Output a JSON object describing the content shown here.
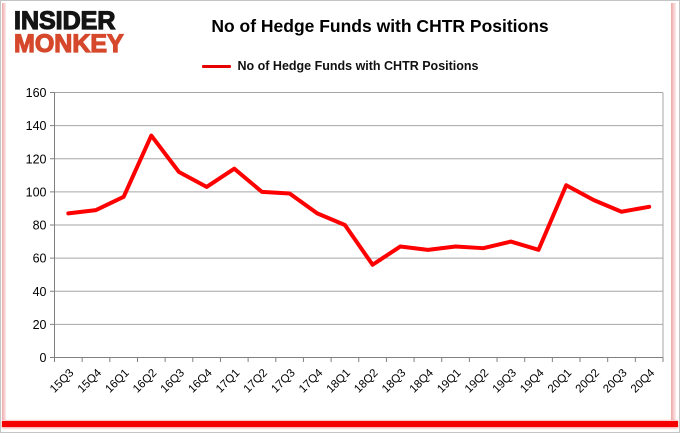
{
  "logo": {
    "line1": "INSIDER",
    "line2": "MONKEY"
  },
  "header": {
    "title": "No of Hedge Funds with CHTR Positions"
  },
  "legend": {
    "label": "No of Hedge Funds with CHTR Positions"
  },
  "colors": {
    "series_red": "#FF0000",
    "logo_red": "#D5482C",
    "gridline": "#A6A6A6",
    "axis": "#808080",
    "frame_red": "#F40000",
    "tick_label": "#000000"
  },
  "chart_data": {
    "type": "line",
    "title": "No of Hedge Funds with CHTR Positions",
    "categories": [
      "15Q3",
      "15Q4",
      "16Q1",
      "16Q2",
      "16Q3",
      "16Q4",
      "17Q1",
      "17Q2",
      "17Q3",
      "17Q4",
      "18Q1",
      "18Q2",
      "18Q3",
      "18Q4",
      "19Q1",
      "19Q2",
      "19Q3",
      "19Q4",
      "20Q1",
      "20Q2",
      "20Q3",
      "20Q4"
    ],
    "series": [
      {
        "name": "No of Hedge Funds with CHTR Positions",
        "color": "#FF0000",
        "values": [
          87,
          89,
          97,
          134,
          112,
          103,
          114,
          100,
          99,
          87,
          80,
          56,
          67,
          65,
          67,
          66,
          70,
          65,
          104,
          95,
          88,
          91
        ]
      }
    ],
    "xlabel": "",
    "ylabel": "",
    "ylim": [
      0,
      160
    ],
    "ytick_step": 20,
    "yticks": [
      0,
      20,
      40,
      60,
      80,
      100,
      120,
      140,
      160
    ],
    "grid": "horizontal",
    "legend_position": "top"
  }
}
